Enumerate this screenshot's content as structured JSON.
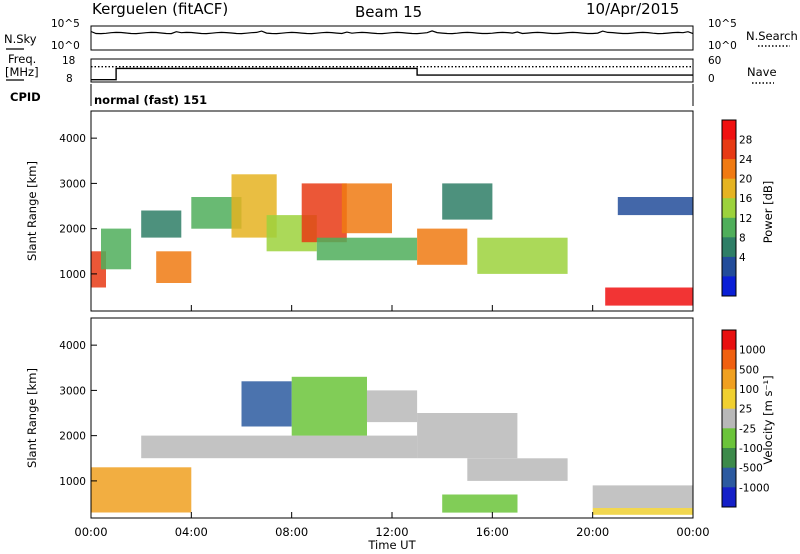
{
  "header": {
    "station": "Kerguelen (fitACF)",
    "beam": "Beam 15",
    "date": "10/Apr/2015"
  },
  "noise_panel": {
    "left_label": "N.Sky",
    "right_label": "N.Search",
    "left_ticks": [
      "10^5",
      "10^0"
    ],
    "right_ticks": [
      "10^5",
      "10^0"
    ]
  },
  "freq_panel": {
    "left_label_1": "Freq.",
    "left_label_2": "[MHz]",
    "left_ticks": [
      "18",
      "8"
    ],
    "right_label": "Nave",
    "right_ticks": [
      "60",
      "0"
    ],
    "freq_steps": [
      {
        "t": 0.0,
        "f": 9.0
      },
      {
        "t": 1.0,
        "f": 9.0
      },
      {
        "t": 1.0,
        "f": 13.9
      },
      {
        "t": 13.0,
        "f": 13.9
      },
      {
        "t": 13.0,
        "f": 11.0
      },
      {
        "t": 24.0,
        "f": 11.0
      }
    ],
    "nave": 40
  },
  "cpid": {
    "label": "CPID",
    "text": "normal (fast) 151"
  },
  "time_axis": {
    "label": "Time UT",
    "ticks": [
      "00:00",
      "04:00",
      "08:00",
      "12:00",
      "16:00",
      "20:00",
      "00:00"
    ],
    "range_hours": [
      0,
      24
    ]
  },
  "chart_data": [
    {
      "type": "heatmap",
      "ylabel": "Slant Range [km]",
      "yticks": [
        "1000",
        "2000",
        "3000",
        "4000"
      ],
      "ylim": [
        180,
        4600
      ],
      "colorbar": {
        "label": "Power [dB]",
        "ticks": [
          "4",
          "8",
          "12",
          "16",
          "20",
          "24",
          "28"
        ],
        "colors": [
          "#0a1fd6",
          "#224c9a",
          "#2e7e66",
          "#4fae5a",
          "#9cd23c",
          "#e5b321",
          "#f07a12",
          "#e73a14",
          "#f01010"
        ]
      },
      "regions": [
        {
          "t0": 0.0,
          "t1": 0.6,
          "r0": 700,
          "r1": 1500,
          "level": 7
        },
        {
          "t0": 0.4,
          "t1": 1.6,
          "r0": 1100,
          "r1": 2000,
          "level": 3
        },
        {
          "t0": 2.0,
          "t1": 3.6,
          "r0": 1800,
          "r1": 2400,
          "level": 2
        },
        {
          "t0": 2.6,
          "t1": 4.0,
          "r0": 800,
          "r1": 1500,
          "level": 6
        },
        {
          "t0": 4.0,
          "t1": 6.0,
          "r0": 2000,
          "r1": 2700,
          "level": 3
        },
        {
          "t0": 5.6,
          "t1": 7.4,
          "r0": 1800,
          "r1": 3200,
          "level": 5
        },
        {
          "t0": 7.0,
          "t1": 9.0,
          "r0": 1500,
          "r1": 2300,
          "level": 4
        },
        {
          "t0": 8.4,
          "t1": 10.2,
          "r0": 1700,
          "r1": 3000,
          "level": 7
        },
        {
          "t0": 10.0,
          "t1": 12.0,
          "r0": 1900,
          "r1": 3000,
          "level": 6
        },
        {
          "t0": 9.0,
          "t1": 13.0,
          "r0": 1300,
          "r1": 1800,
          "level": 3
        },
        {
          "t0": 13.0,
          "t1": 15.0,
          "r0": 1200,
          "r1": 2000,
          "level": 6
        },
        {
          "t0": 15.4,
          "t1": 19.0,
          "r0": 1000,
          "r1": 1800,
          "level": 4
        },
        {
          "t0": 14.0,
          "t1": 16.0,
          "r0": 2200,
          "r1": 3000,
          "level": 2
        },
        {
          "t0": 20.5,
          "t1": 24.0,
          "r0": 300,
          "r1": 700,
          "level": 8
        },
        {
          "t0": 21.0,
          "t1": 24.0,
          "r0": 2300,
          "r1": 2700,
          "level": 1
        }
      ]
    },
    {
      "type": "heatmap",
      "ylabel": "Slant Range [km]",
      "yticks": [
        "1000",
        "2000",
        "3000",
        "4000"
      ],
      "ylim": [
        180,
        4600
      ],
      "colorbar": {
        "label": "Velocity [m s⁻¹]",
        "ticks": [
          "1000",
          "500",
          "100",
          "25",
          "-25",
          "-100",
          "-500",
          "-1000"
        ],
        "colors": [
          "#1520c8",
          "#2c5aa0",
          "#3c8a4a",
          "#6bc43a",
          "#b8b8b8",
          "#f0d030",
          "#f0a020",
          "#f06010",
          "#e81010"
        ]
      },
      "regions": [
        {
          "t0": 0.0,
          "t1": 4.0,
          "r0": 300,
          "r1": 1300,
          "level": 6
        },
        {
          "t0": 2.0,
          "t1": 13.0,
          "r0": 1500,
          "r1": 2000,
          "level": 4
        },
        {
          "t0": 6.0,
          "t1": 8.0,
          "r0": 2200,
          "r1": 3200,
          "level": 1
        },
        {
          "t0": 8.0,
          "t1": 11.0,
          "r0": 2000,
          "r1": 3300,
          "level": 3
        },
        {
          "t0": 11.0,
          "t1": 13.0,
          "r0": 2300,
          "r1": 3000,
          "level": 4
        },
        {
          "t0": 13.0,
          "t1": 17.0,
          "r0": 1500,
          "r1": 2500,
          "level": 4
        },
        {
          "t0": 15.0,
          "t1": 19.0,
          "r0": 1000,
          "r1": 1500,
          "level": 4
        },
        {
          "t0": 14.0,
          "t1": 17.0,
          "r0": 300,
          "r1": 700,
          "level": 3
        },
        {
          "t0": 20.0,
          "t1": 24.0,
          "r0": 400,
          "r1": 900,
          "level": 4
        },
        {
          "t0": 20.0,
          "t1": 24.0,
          "r0": 250,
          "r1": 400,
          "level": 5
        }
      ]
    }
  ]
}
